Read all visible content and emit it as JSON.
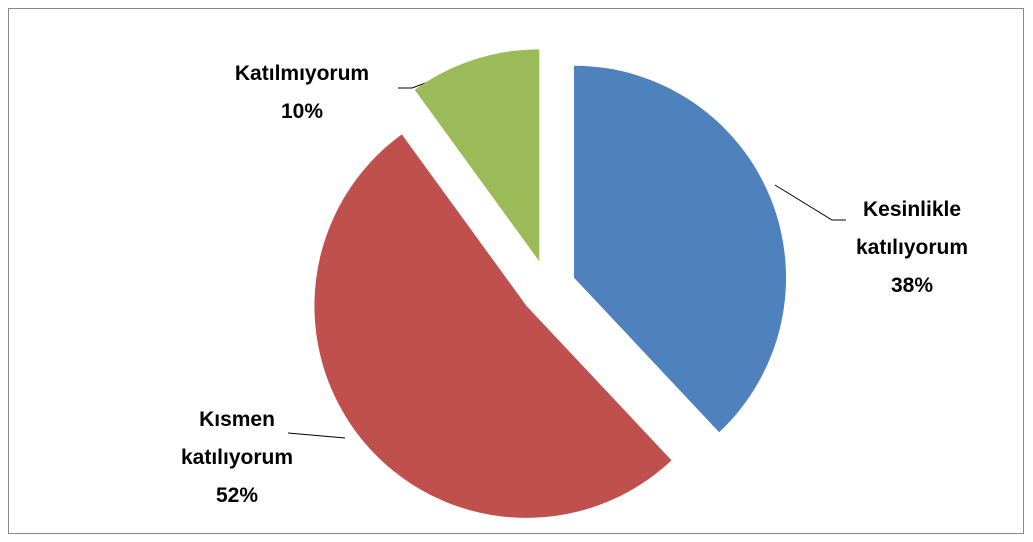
{
  "chart_data": {
    "type": "pie",
    "categories": [
      "Kesinlikle katılıyorum",
      "Kısmen katılıyorum",
      "Katılmıyorum"
    ],
    "values": [
      38,
      52,
      10
    ],
    "value_labels": [
      "38%",
      "52%",
      "10%"
    ],
    "colors": [
      "#4f81bd",
      "#c0504d",
      "#9bbb59"
    ],
    "start_angle": 0,
    "direction": "clockwise",
    "exploded": true
  }
}
